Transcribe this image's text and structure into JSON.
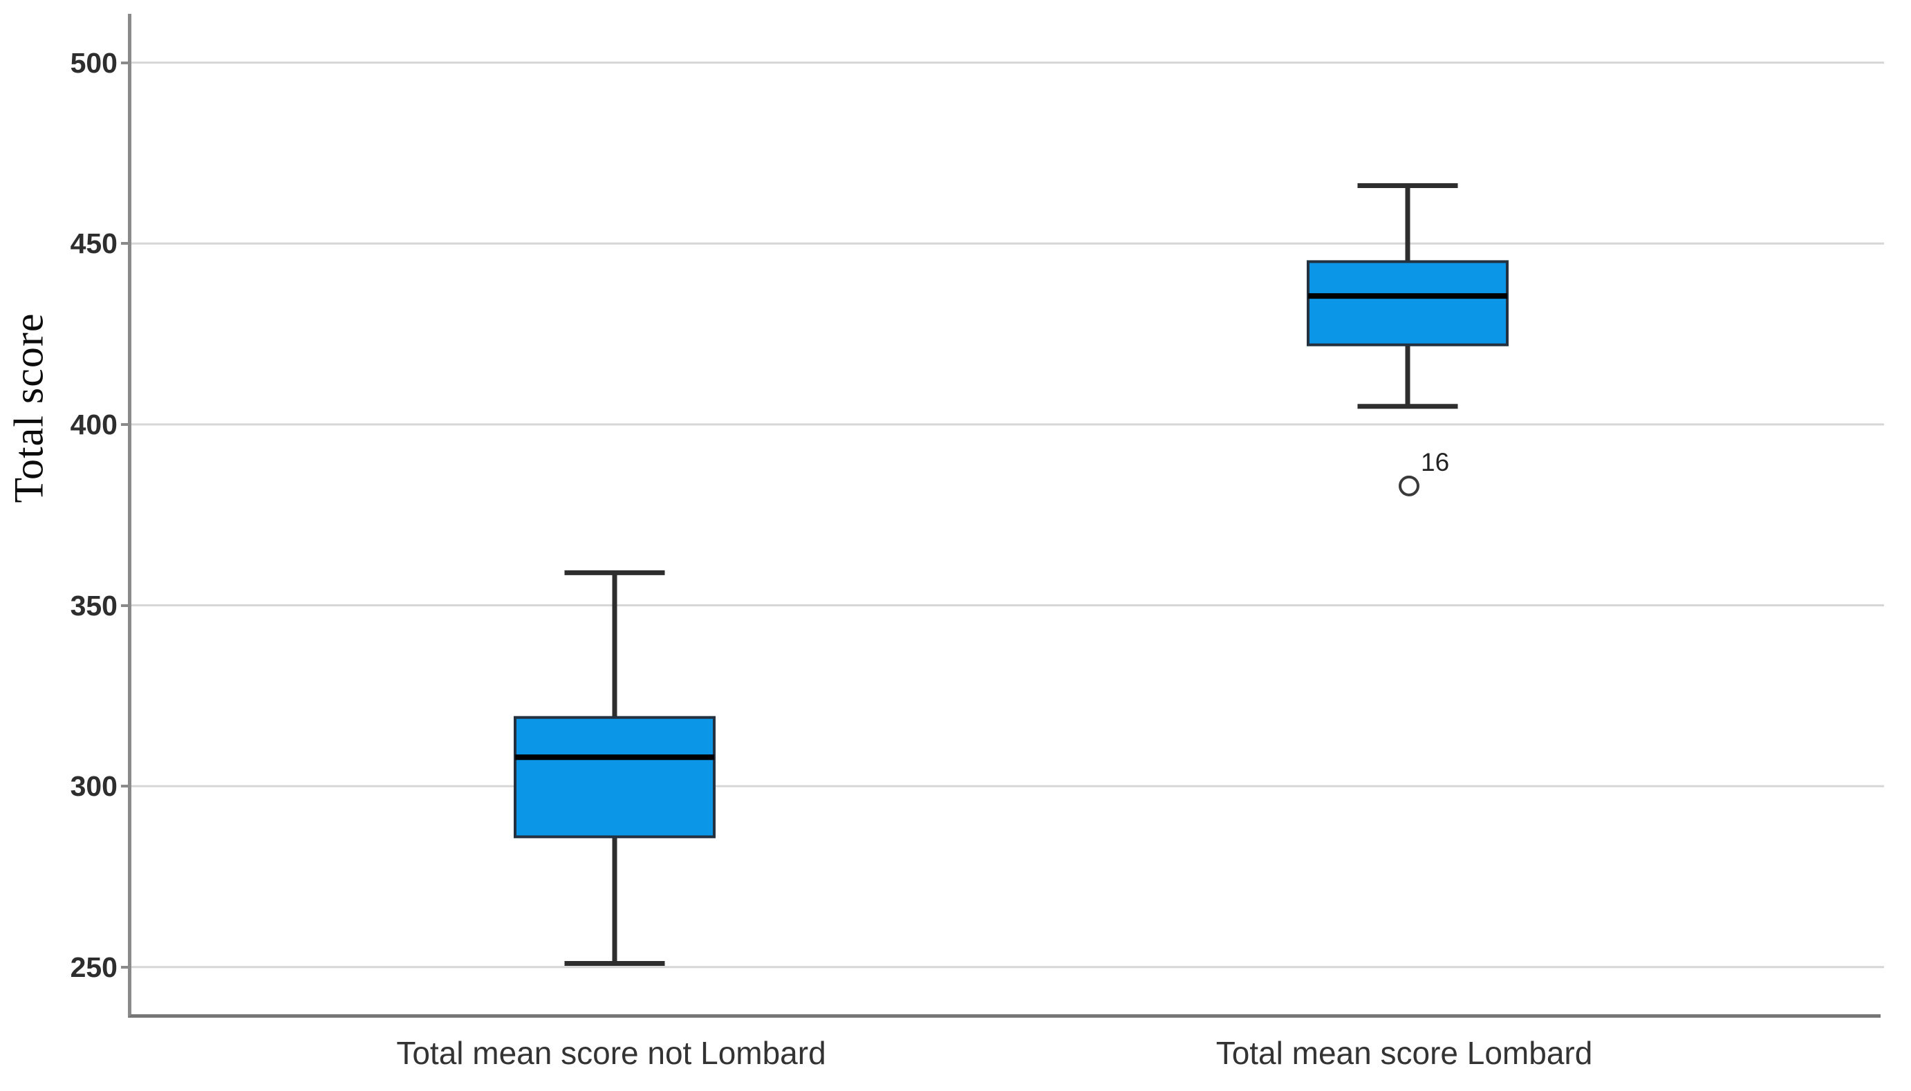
{
  "chart_data": {
    "type": "boxplot",
    "title": "",
    "ylabel": "Total score",
    "xlabel": "",
    "yticks": [
      250,
      300,
      350,
      400,
      450,
      500
    ],
    "ylim": [
      236,
      513.5
    ],
    "grid": "horizontal",
    "legend": "none",
    "categories": [
      "Total mean score not Lombard",
      "Total mean score Lombard"
    ],
    "boxes": [
      {
        "category": "Total mean score not Lombard",
        "whisker_low": 251,
        "q1": 286,
        "median": 308,
        "q3": 319,
        "whisker_high": 359,
        "outliers": []
      },
      {
        "category": "Total mean score Lombard",
        "whisker_low": 405,
        "q1": 422,
        "median": 435.5,
        "q3": 445,
        "whisker_high": 466,
        "outliers": [
          {
            "value": 383,
            "label": "16"
          }
        ]
      }
    ],
    "colors": {
      "box_fill": "#0C96E8",
      "box_border": "#233140",
      "median": "#000000",
      "whisker": "#2E2E2E",
      "gridline": "#D6D6D6",
      "axis": "#8A8A8A",
      "outlier_stroke": "#3A3A3A",
      "text": "#2E2E2E"
    }
  }
}
